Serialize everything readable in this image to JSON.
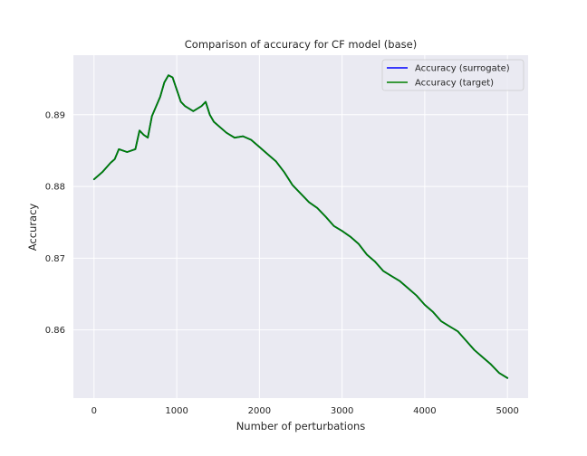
{
  "chart_data": {
    "type": "line",
    "title": "Comparison of accuracy for CF model (base)",
    "xlabel": "Number of perturbations",
    "ylabel": "Accuracy",
    "xlim": [
      -250,
      5250
    ],
    "ylim": [
      0.8505,
      0.8983
    ],
    "xticks": [
      0,
      1000,
      2000,
      3000,
      4000,
      5000
    ],
    "yticks": [
      0.86,
      0.87,
      0.88,
      0.89
    ],
    "xtick_labels": [
      "0",
      "1000",
      "2000",
      "3000",
      "4000",
      "5000"
    ],
    "ytick_labels": [
      "0.86",
      "0.87",
      "0.88",
      "0.89"
    ],
    "grid": true,
    "legend_position": "top-right",
    "series": [
      {
        "name": "Accuracy (surrogate)",
        "color": "#0000ff",
        "x": [
          0,
          100,
          200,
          250,
          300,
          400,
          500,
          550,
          600,
          650,
          700,
          800,
          850,
          900,
          950,
          1000,
          1050,
          1100,
          1200,
          1300,
          1350,
          1400,
          1450,
          1500,
          1600,
          1700,
          1800,
          1900,
          2000,
          2100,
          2200,
          2300,
          2400,
          2500,
          2600,
          2700,
          2800,
          2900,
          3000,
          3100,
          3200,
          3300,
          3400,
          3500,
          3600,
          3700,
          3800,
          3900,
          4000,
          4100,
          4200,
          4300,
          4400,
          4500,
          4600,
          4700,
          4800,
          4900,
          5000
        ],
        "y": [
          0.881,
          0.882,
          0.8833,
          0.8838,
          0.8852,
          0.8848,
          0.8852,
          0.8878,
          0.8872,
          0.8868,
          0.8898,
          0.8925,
          0.8945,
          0.8955,
          0.8952,
          0.8935,
          0.8918,
          0.8912,
          0.8905,
          0.8912,
          0.8918,
          0.89,
          0.889,
          0.8885,
          0.8875,
          0.8868,
          0.887,
          0.8865,
          0.8855,
          0.8845,
          0.8835,
          0.882,
          0.8802,
          0.879,
          0.8778,
          0.877,
          0.8758,
          0.8745,
          0.8738,
          0.873,
          0.872,
          0.8705,
          0.8695,
          0.8682,
          0.8675,
          0.8668,
          0.8658,
          0.8648,
          0.8635,
          0.8625,
          0.8612,
          0.8605,
          0.8598,
          0.8585,
          0.8572,
          0.8562,
          0.8552,
          0.854,
          0.8533
        ]
      },
      {
        "name": "Accuracy (target)",
        "color": "#008000",
        "x": [
          0,
          100,
          200,
          250,
          300,
          400,
          500,
          550,
          600,
          650,
          700,
          800,
          850,
          900,
          950,
          1000,
          1050,
          1100,
          1200,
          1300,
          1350,
          1400,
          1450,
          1500,
          1600,
          1700,
          1800,
          1900,
          2000,
          2100,
          2200,
          2300,
          2400,
          2500,
          2600,
          2700,
          2800,
          2900,
          3000,
          3100,
          3200,
          3300,
          3400,
          3500,
          3600,
          3700,
          3800,
          3900,
          4000,
          4100,
          4200,
          4300,
          4400,
          4500,
          4600,
          4700,
          4800,
          4900,
          5000
        ],
        "y": [
          0.881,
          0.882,
          0.8833,
          0.8838,
          0.8852,
          0.8848,
          0.8852,
          0.8878,
          0.8872,
          0.8868,
          0.8898,
          0.8925,
          0.8945,
          0.8955,
          0.8952,
          0.8935,
          0.8918,
          0.8912,
          0.8905,
          0.8912,
          0.8918,
          0.89,
          0.889,
          0.8885,
          0.8875,
          0.8868,
          0.887,
          0.8865,
          0.8855,
          0.8845,
          0.8835,
          0.882,
          0.8802,
          0.879,
          0.8778,
          0.877,
          0.8758,
          0.8745,
          0.8738,
          0.873,
          0.872,
          0.8705,
          0.8695,
          0.8682,
          0.8675,
          0.8668,
          0.8658,
          0.8648,
          0.8635,
          0.8625,
          0.8612,
          0.8605,
          0.8598,
          0.8585,
          0.8572,
          0.8562,
          0.8552,
          0.854,
          0.8533
        ]
      }
    ]
  },
  "style": {
    "plot_background": "#eaeaf2",
    "grid_color": "#ffffff",
    "text_color": "#262626"
  }
}
